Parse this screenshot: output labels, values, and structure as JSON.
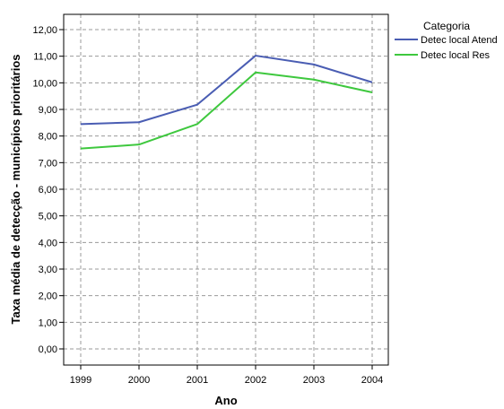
{
  "chart_data": {
    "type": "line",
    "xlabel": "Ano",
    "ylabel": "Taxa média de detecção - municípios prioritários",
    "categories": [
      "1999",
      "2000",
      "2001",
      "2002",
      "2003",
      "2004"
    ],
    "y_ticks": [
      "0,00",
      "1,00",
      "2,00",
      "3,00",
      "4,00",
      "5,00",
      "6,00",
      "7,00",
      "8,00",
      "9,00",
      "10,00",
      "11,00",
      "12,00"
    ],
    "ylim": [
      0,
      12
    ],
    "grid": true,
    "legend": {
      "title": "Categoria",
      "position": "right"
    },
    "series": [
      {
        "name": "Detec local Atend",
        "color": "#4a5db3",
        "values": [
          8.45,
          8.52,
          9.18,
          11.02,
          10.69,
          10.02
        ]
      },
      {
        "name": "Detec local Res",
        "color": "#3ec83e",
        "values": [
          7.53,
          7.68,
          8.45,
          10.39,
          10.12,
          9.64
        ]
      }
    ]
  }
}
